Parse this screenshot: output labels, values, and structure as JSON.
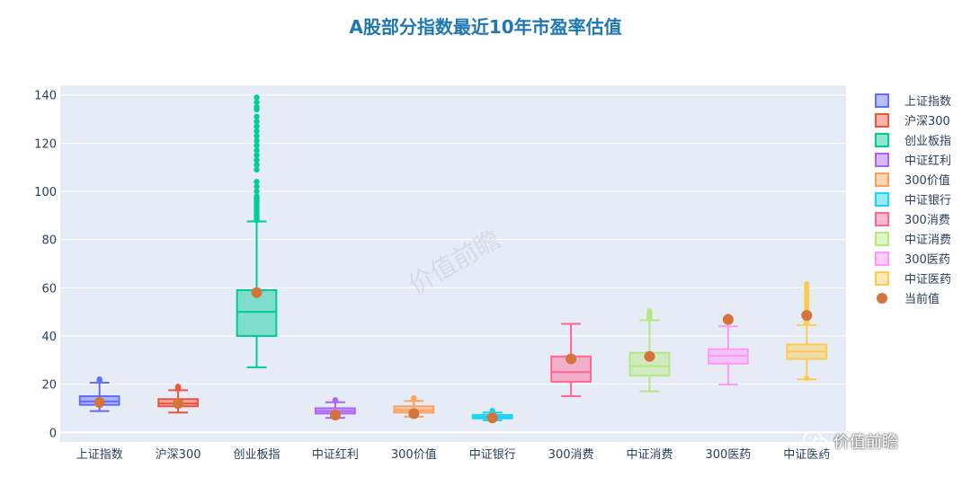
{
  "title": "A股部分指数最近10年市盈率估值",
  "watermark": "价值前瞻",
  "brand": "价值前瞻",
  "chart_data": {
    "type": "box",
    "ylim": [
      -4,
      144
    ],
    "yticks": [
      0,
      20,
      40,
      60,
      80,
      100,
      120,
      140
    ],
    "grid": true,
    "legend_position": "right",
    "current_value_label": "当前值",
    "current_value_color": "#d4743a",
    "series": [
      {
        "name": "上证指数",
        "color": "#636efa",
        "min": 8.8,
        "q1": 11.4,
        "median": 12.8,
        "q3": 15.0,
        "max": 20.6,
        "outliers": [
          21.3,
          22.0
        ],
        "current": 12.4
      },
      {
        "name": "沪深300",
        "color": "#ef553b",
        "min": 8.2,
        "q1": 10.8,
        "median": 12.0,
        "q3": 13.8,
        "max": 17.5,
        "outliers": [
          18.3,
          19.0
        ],
        "current": 12.0
      },
      {
        "name": "创业板指",
        "color": "#00cc96",
        "min": 27.0,
        "q1": 40.0,
        "median": 50.0,
        "q3": 59.0,
        "max": 87.5,
        "outliers": [
          88,
          89,
          90,
          91,
          92,
          93,
          94,
          95,
          96,
          97,
          98,
          100,
          102,
          104,
          109,
          111,
          113,
          115,
          117,
          119,
          121,
          123,
          125,
          127,
          129,
          131,
          134,
          135,
          137,
          139
        ],
        "current": 58.0
      },
      {
        "name": "中证红利",
        "color": "#ab63fa",
        "min": 6.0,
        "q1": 7.8,
        "median": 8.8,
        "q3": 10.0,
        "max": 12.5,
        "outliers": [
          13.4
        ],
        "current": 7.2
      },
      {
        "name": "300价值",
        "color": "#ffa15a",
        "min": 6.5,
        "q1": 8.2,
        "median": 9.2,
        "q3": 10.8,
        "max": 13.0,
        "outliers": [
          14.2
        ],
        "current": 7.8
      },
      {
        "name": "中证银行",
        "color": "#19d3f3",
        "min": 5.0,
        "q1": 5.8,
        "median": 6.4,
        "q3": 7.2,
        "max": 8.2,
        "outliers": [
          9.0
        ],
        "current": 6.0
      },
      {
        "name": "300消费",
        "color": "#ff6692",
        "min": 15.0,
        "q1": 21.0,
        "median": 25.0,
        "q3": 31.5,
        "max": 45.0,
        "outliers": [],
        "current": 30.5
      },
      {
        "name": "中证消费",
        "color": "#b6e880",
        "min": 17.0,
        "q1": 23.5,
        "median": 27.5,
        "q3": 33.0,
        "max": 46.5,
        "outliers": [
          47.2,
          48.0,
          48.8,
          49.5,
          50.2
        ],
        "current": 31.5
      },
      {
        "name": "300医药",
        "color": "#ff97ff",
        "min": 19.8,
        "q1": 28.5,
        "median": 31.8,
        "q3": 34.5,
        "max": 44.0,
        "outliers": [
          46.5,
          47.5,
          48.2
        ],
        "current": 46.8
      },
      {
        "name": "中证医药",
        "color": "#fecb52",
        "min": 22.0,
        "q1": 30.5,
        "median": 33.5,
        "q3": 36.5,
        "max": 44.5,
        "outliers": [
          22.5,
          45.5,
          46.5,
          47.5,
          48.5,
          49.5,
          51,
          52.5,
          54,
          55.5,
          57,
          58.5,
          60,
          61.5
        ],
        "current": 48.5
      }
    ]
  }
}
